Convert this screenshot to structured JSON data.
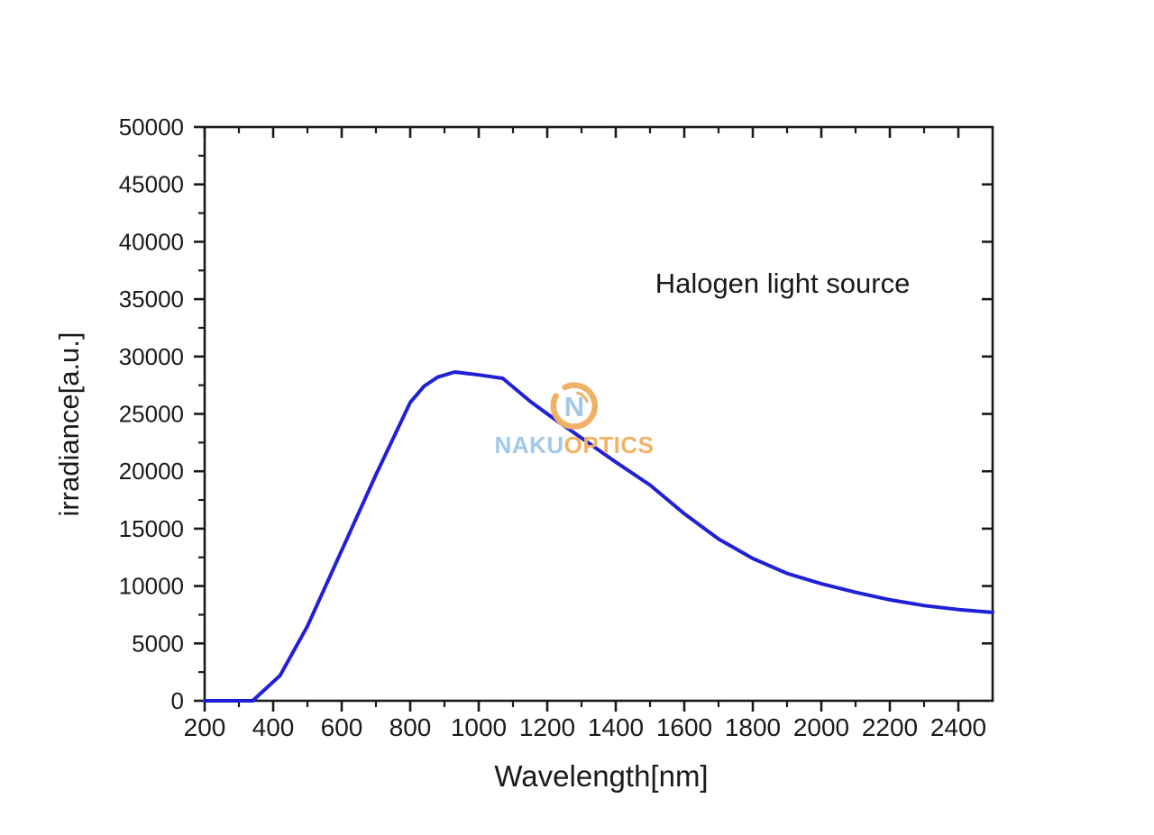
{
  "annotation": {
    "text": "Halogen light source"
  },
  "watermark": {
    "monogram": "N",
    "name_left": "NAKU",
    "name_right": "OPTICS",
    "ring_color": "#F0B164",
    "accent_blue": "#A3C8E6",
    "optics_orange": "#F2B366"
  },
  "chart_data": {
    "type": "line",
    "title": "",
    "annotation": "Halogen light source",
    "xlabel": "Wavelength[nm]",
    "ylabel": "irradiance[a.u.]",
    "xlim": [
      200,
      2500
    ],
    "ylim": [
      0,
      50000
    ],
    "x_major_ticks": [
      200,
      400,
      600,
      800,
      1000,
      1200,
      1400,
      1600,
      1800,
      2000,
      2200,
      2400
    ],
    "x_minor_tick_step": 100,
    "y_major_ticks": [
      0,
      5000,
      10000,
      15000,
      20000,
      25000,
      30000,
      35000,
      40000,
      45000,
      50000
    ],
    "y_minor_tick_step": 2500,
    "grid": false,
    "legend_position": "none",
    "frame": "full-box",
    "axis_color": "#1a1a1a",
    "series": [
      {
        "name": "Halogen light source spectrum",
        "color": "#2020D6",
        "points": [
          [
            200,
            0
          ],
          [
            340,
            0
          ],
          [
            420,
            2200
          ],
          [
            500,
            6500
          ],
          [
            600,
            13100
          ],
          [
            700,
            19700
          ],
          [
            800,
            26000
          ],
          [
            840,
            27400
          ],
          [
            880,
            28200
          ],
          [
            930,
            28650
          ],
          [
            1000,
            28400
          ],
          [
            1070,
            28100
          ],
          [
            1150,
            26100
          ],
          [
            1200,
            25000
          ],
          [
            1300,
            22900
          ],
          [
            1400,
            20800
          ],
          [
            1500,
            18800
          ],
          [
            1600,
            16300
          ],
          [
            1700,
            14100
          ],
          [
            1800,
            12400
          ],
          [
            1900,
            11100
          ],
          [
            2000,
            10200
          ],
          [
            2100,
            9450
          ],
          [
            2200,
            8800
          ],
          [
            2300,
            8300
          ],
          [
            2400,
            7950
          ],
          [
            2500,
            7700
          ]
        ]
      }
    ]
  }
}
